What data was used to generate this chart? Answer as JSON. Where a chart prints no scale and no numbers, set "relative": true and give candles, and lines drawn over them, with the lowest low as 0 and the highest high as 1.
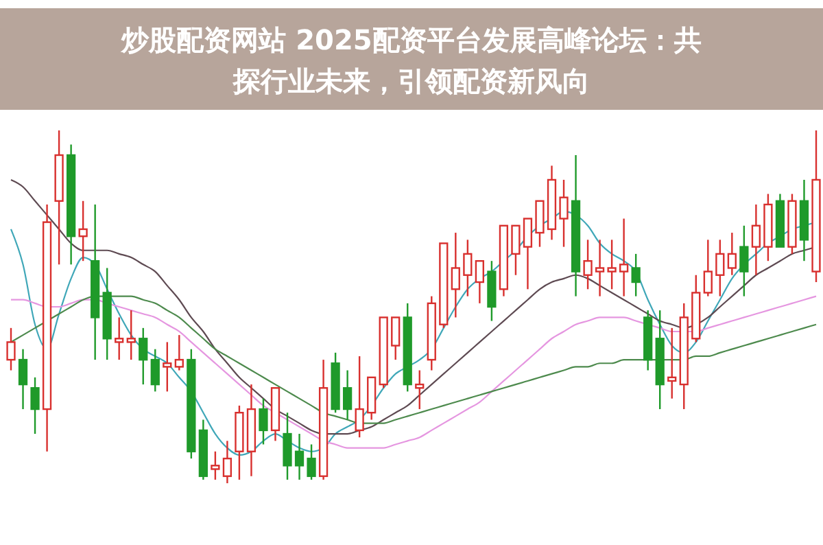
{
  "chart_data": {
    "type": "candlestick",
    "title": "炒股配资网站 2025配资平台发展高峰论坛：共探行业未来，引领配资新风向",
    "relative": true,
    "categories": [
      null,
      null,
      null,
      null,
      null,
      null,
      null,
      null,
      null,
      null,
      null,
      null,
      null,
      null,
      null,
      null,
      null,
      null,
      null,
      null,
      null,
      null,
      null,
      null,
      null,
      null,
      null,
      null,
      null,
      null,
      null,
      null,
      null,
      null,
      null,
      null,
      null,
      null,
      null,
      null,
      null,
      null,
      null,
      null,
      null,
      null,
      null,
      null,
      null,
      null,
      null,
      null,
      null,
      null,
      null,
      null,
      null,
      null,
      null,
      null,
      null,
      null,
      null,
      null,
      null,
      null,
      null,
      null
    ],
    "ohlc": [
      [
        0.35,
        0.44,
        0.32,
        0.4
      ],
      [
        0.35,
        0.38,
        0.21,
        0.28
      ],
      [
        0.27,
        0.3,
        0.14,
        0.21
      ],
      [
        0.21,
        0.79,
        0.09,
        0.74
      ],
      [
        0.8,
        1.0,
        0.62,
        0.93
      ],
      [
        0.93,
        0.96,
        0.62,
        0.7
      ],
      [
        0.7,
        0.8,
        0.63,
        0.72
      ],
      [
        0.63,
        0.79,
        0.35,
        0.47
      ],
      [
        0.54,
        0.61,
        0.35,
        0.41
      ],
      [
        0.4,
        0.47,
        0.35,
        0.41
      ],
      [
        0.4,
        0.49,
        0.35,
        0.41
      ],
      [
        0.41,
        0.44,
        0.28,
        0.35
      ],
      [
        0.35,
        0.38,
        0.26,
        0.28
      ],
      [
        0.33,
        0.4,
        0.26,
        0.34
      ],
      [
        0.33,
        0.42,
        0.32,
        0.35
      ],
      [
        0.35,
        0.38,
        0.07,
        0.09
      ],
      [
        0.15,
        0.18,
        0.01,
        0.02
      ],
      [
        0.04,
        0.09,
        0.01,
        0.05
      ],
      [
        0.02,
        0.12,
        0.0,
        0.07
      ],
      [
        0.09,
        0.22,
        0.01,
        0.2
      ],
      [
        0.09,
        0.28,
        0.02,
        0.21
      ],
      [
        0.21,
        0.24,
        0.11,
        0.15
      ],
      [
        0.15,
        0.27,
        0.12,
        0.27
      ],
      [
        0.14,
        0.2,
        0.01,
        0.05
      ],
      [
        0.09,
        0.14,
        0.01,
        0.05
      ],
      [
        0.07,
        0.11,
        0.01,
        0.02
      ],
      [
        0.02,
        0.35,
        0.01,
        0.27
      ],
      [
        0.34,
        0.37,
        0.2,
        0.21
      ],
      [
        0.27,
        0.32,
        0.18,
        0.21
      ],
      [
        0.15,
        0.36,
        0.13,
        0.21
      ],
      [
        0.2,
        0.3,
        0.18,
        0.3
      ],
      [
        0.28,
        0.47,
        0.27,
        0.47
      ],
      [
        0.39,
        0.47,
        0.35,
        0.47
      ],
      [
        0.47,
        0.51,
        0.26,
        0.28
      ],
      [
        0.27,
        0.32,
        0.21,
        0.28
      ],
      [
        0.35,
        0.53,
        0.32,
        0.51
      ],
      [
        0.45,
        0.68,
        0.44,
        0.68
      ],
      [
        0.55,
        0.71,
        0.47,
        0.61
      ],
      [
        0.59,
        0.69,
        0.53,
        0.65
      ],
      [
        0.57,
        0.63,
        0.51,
        0.63
      ],
      [
        0.6,
        0.63,
        0.46,
        0.5
      ],
      [
        0.55,
        0.73,
        0.53,
        0.73
      ],
      [
        0.65,
        0.73,
        0.59,
        0.73
      ],
      [
        0.67,
        0.75,
        0.55,
        0.75
      ],
      [
        0.71,
        0.8,
        0.67,
        0.8
      ],
      [
        0.72,
        0.9,
        0.69,
        0.86
      ],
      [
        0.75,
        0.86,
        0.67,
        0.81
      ],
      [
        0.8,
        0.93,
        0.53,
        0.6
      ],
      [
        0.59,
        0.69,
        0.55,
        0.63
      ],
      [
        0.6,
        0.69,
        0.53,
        0.61
      ],
      [
        0.6,
        0.69,
        0.55,
        0.61
      ],
      [
        0.6,
        0.75,
        0.53,
        0.62
      ],
      [
        0.61,
        0.65,
        0.53,
        0.57
      ],
      [
        0.47,
        0.49,
        0.32,
        0.35
      ],
      [
        0.41,
        0.49,
        0.21,
        0.28
      ],
      [
        0.29,
        0.44,
        0.24,
        0.3
      ],
      [
        0.28,
        0.51,
        0.21,
        0.47
      ],
      [
        0.41,
        0.59,
        0.4,
        0.54
      ],
      [
        0.54,
        0.69,
        0.53,
        0.6
      ],
      [
        0.59,
        0.69,
        0.53,
        0.65
      ],
      [
        0.61,
        0.71,
        0.59,
        0.65
      ],
      [
        0.67,
        0.73,
        0.53,
        0.6
      ],
      [
        0.67,
        0.79,
        0.59,
        0.73
      ],
      [
        0.67,
        0.82,
        0.63,
        0.79
      ],
      [
        0.8,
        0.82,
        0.67,
        0.67
      ],
      [
        0.67,
        0.82,
        0.65,
        0.8
      ],
      [
        0.8,
        0.86,
        0.63,
        0.69
      ],
      [
        0.6,
        1.0,
        0.57,
        0.86
      ]
    ],
    "series": [
      {
        "type": "line",
        "color": "#3fa7b8",
        "values": [
          0.72,
          0.62,
          0.45,
          0.38,
          0.48,
          0.58,
          0.64,
          0.62,
          0.55,
          0.48,
          0.42,
          0.38,
          0.36,
          0.34,
          0.3,
          0.26,
          0.2,
          0.14,
          0.1,
          0.08,
          0.09,
          0.12,
          0.14,
          0.12,
          0.1,
          0.09,
          0.1,
          0.14,
          0.16,
          0.18,
          0.22,
          0.27,
          0.31,
          0.33,
          0.35,
          0.38,
          0.44,
          0.5,
          0.55,
          0.58,
          0.6,
          0.63,
          0.66,
          0.7,
          0.73,
          0.75,
          0.77,
          0.76,
          0.73,
          0.68,
          0.65,
          0.63,
          0.6,
          0.52,
          0.45,
          0.39,
          0.37,
          0.4,
          0.46,
          0.52,
          0.58,
          0.62,
          0.65,
          0.68,
          0.7,
          0.72,
          0.73,
          0.74
        ]
      },
      {
        "type": "line",
        "color": "#5e4a52",
        "values": [
          0.86,
          0.84,
          0.8,
          0.76,
          0.72,
          0.68,
          0.66,
          0.66,
          0.66,
          0.65,
          0.64,
          0.62,
          0.6,
          0.56,
          0.52,
          0.47,
          0.43,
          0.38,
          0.34,
          0.3,
          0.27,
          0.24,
          0.21,
          0.19,
          0.17,
          0.15,
          0.14,
          0.14,
          0.14,
          0.15,
          0.16,
          0.18,
          0.2,
          0.22,
          0.25,
          0.28,
          0.31,
          0.34,
          0.37,
          0.4,
          0.43,
          0.46,
          0.49,
          0.52,
          0.55,
          0.57,
          0.58,
          0.59,
          0.58,
          0.56,
          0.54,
          0.52,
          0.5,
          0.48,
          0.46,
          0.45,
          0.44,
          0.45,
          0.47,
          0.5,
          0.53,
          0.56,
          0.59,
          0.61,
          0.63,
          0.65,
          0.66,
          0.67
        ]
      },
      {
        "type": "line",
        "color": "#e596e0",
        "values": [
          0.52,
          0.52,
          0.51,
          0.5,
          0.5,
          0.51,
          0.52,
          0.52,
          0.51,
          0.5,
          0.49,
          0.48,
          0.47,
          0.45,
          0.43,
          0.4,
          0.37,
          0.34,
          0.31,
          0.28,
          0.25,
          0.22,
          0.2,
          0.18,
          0.16,
          0.14,
          0.12,
          0.11,
          0.1,
          0.1,
          0.1,
          0.1,
          0.11,
          0.12,
          0.13,
          0.15,
          0.17,
          0.19,
          0.21,
          0.23,
          0.26,
          0.29,
          0.32,
          0.35,
          0.38,
          0.41,
          0.43,
          0.45,
          0.46,
          0.47,
          0.47,
          0.47,
          0.46,
          0.45,
          0.44,
          0.43,
          0.43,
          0.43,
          0.44,
          0.45,
          0.46,
          0.47,
          0.48,
          0.49,
          0.5,
          0.51,
          0.52,
          0.53
        ]
      },
      {
        "type": "line",
        "color": "#4d8a4d",
        "values": [
          0.4,
          0.42,
          0.44,
          0.46,
          0.48,
          0.5,
          0.52,
          0.53,
          0.53,
          0.53,
          0.53,
          0.52,
          0.51,
          0.49,
          0.47,
          0.44,
          0.41,
          0.38,
          0.36,
          0.34,
          0.32,
          0.3,
          0.28,
          0.26,
          0.24,
          0.22,
          0.2,
          0.19,
          0.18,
          0.17,
          0.17,
          0.17,
          0.18,
          0.19,
          0.2,
          0.21,
          0.22,
          0.23,
          0.24,
          0.25,
          0.26,
          0.27,
          0.28,
          0.29,
          0.3,
          0.31,
          0.32,
          0.33,
          0.33,
          0.34,
          0.34,
          0.35,
          0.35,
          0.35,
          0.35,
          0.35,
          0.35,
          0.36,
          0.36,
          0.37,
          0.38,
          0.39,
          0.4,
          0.41,
          0.42,
          0.43,
          0.44,
          0.45
        ]
      }
    ]
  }
}
